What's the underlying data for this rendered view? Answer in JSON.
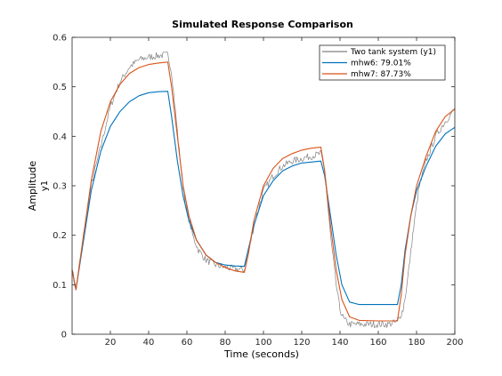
{
  "chart_data": {
    "type": "line",
    "title": "Simulated Response Comparison",
    "xlabel": "Time (seconds)",
    "ylabel": "Amplitude",
    "ylabel_sub": "y1",
    "xlim": [
      0,
      200
    ],
    "ylim": [
      0,
      0.6
    ],
    "xticks": [
      20,
      40,
      60,
      80,
      100,
      120,
      140,
      160,
      180,
      200
    ],
    "yticks": [
      0,
      0.1,
      0.2,
      0.3,
      0.4,
      0.5,
      0.6
    ],
    "grid": false,
    "legend_position": "top-right",
    "series": [
      {
        "name": "Two tank system (y1)",
        "color": "#808080",
        "noisy": true,
        "x": [
          0,
          2,
          6,
          10,
          15,
          20,
          25,
          30,
          35,
          40,
          45,
          50,
          52,
          54,
          56,
          58,
          60,
          63,
          66,
          70,
          75,
          80,
          85,
          90,
          92,
          95,
          100,
          105,
          110,
          115,
          120,
          125,
          130,
          132,
          135,
          138,
          140,
          142,
          145,
          150,
          155,
          160,
          165,
          170,
          173,
          175,
          178,
          181,
          185,
          190,
          195,
          200
        ],
        "y": [
          0.13,
          0.09,
          0.2,
          0.3,
          0.38,
          0.46,
          0.51,
          0.54,
          0.555,
          0.56,
          0.563,
          0.565,
          0.53,
          0.45,
          0.37,
          0.3,
          0.25,
          0.2,
          0.17,
          0.15,
          0.14,
          0.135,
          0.132,
          0.13,
          0.16,
          0.22,
          0.29,
          0.32,
          0.34,
          0.35,
          0.355,
          0.36,
          0.365,
          0.33,
          0.2,
          0.1,
          0.05,
          0.03,
          0.02,
          0.02,
          0.02,
          0.02,
          0.02,
          0.025,
          0.05,
          0.1,
          0.2,
          0.29,
          0.35,
          0.4,
          0.43,
          0.455
        ]
      },
      {
        "name": "mhw6: 79.01%",
        "color": "#0072BD",
        "noisy": false,
        "x": [
          0,
          2,
          6,
          10,
          15,
          20,
          25,
          30,
          35,
          40,
          45,
          50,
          52,
          55,
          58,
          61,
          65,
          70,
          75,
          80,
          85,
          90,
          92,
          95,
          100,
          105,
          110,
          115,
          120,
          125,
          130,
          132,
          135,
          138,
          141,
          145,
          150,
          160,
          170,
          172,
          174,
          177,
          180,
          185,
          190,
          195,
          200
        ],
        "y": [
          0.13,
          0.09,
          0.19,
          0.29,
          0.37,
          0.42,
          0.45,
          0.47,
          0.482,
          0.488,
          0.49,
          0.491,
          0.44,
          0.35,
          0.28,
          0.23,
          0.19,
          0.16,
          0.145,
          0.14,
          0.138,
          0.137,
          0.17,
          0.22,
          0.28,
          0.31,
          0.33,
          0.34,
          0.346,
          0.348,
          0.35,
          0.32,
          0.24,
          0.16,
          0.1,
          0.065,
          0.06,
          0.06,
          0.06,
          0.1,
          0.17,
          0.24,
          0.29,
          0.34,
          0.38,
          0.405,
          0.418
        ]
      },
      {
        "name": "mhw7: 87.73%",
        "color": "#D95319",
        "noisy": false,
        "x": [
          0,
          2,
          6,
          10,
          15,
          20,
          25,
          30,
          35,
          40,
          45,
          50,
          52,
          55,
          58,
          61,
          65,
          70,
          75,
          80,
          85,
          90,
          92,
          95,
          100,
          105,
          110,
          115,
          120,
          125,
          130,
          132,
          135,
          138,
          141,
          145,
          150,
          160,
          170,
          172,
          174,
          177,
          180,
          185,
          190,
          195,
          200
        ],
        "y": [
          0.13,
          0.09,
          0.2,
          0.31,
          0.41,
          0.47,
          0.505,
          0.527,
          0.539,
          0.545,
          0.548,
          0.55,
          0.5,
          0.4,
          0.3,
          0.24,
          0.19,
          0.16,
          0.145,
          0.135,
          0.128,
          0.125,
          0.16,
          0.23,
          0.3,
          0.335,
          0.355,
          0.365,
          0.372,
          0.376,
          0.378,
          0.33,
          0.22,
          0.13,
          0.07,
          0.035,
          0.028,
          0.027,
          0.027,
          0.08,
          0.16,
          0.24,
          0.3,
          0.36,
          0.41,
          0.44,
          0.455
        ]
      }
    ]
  }
}
